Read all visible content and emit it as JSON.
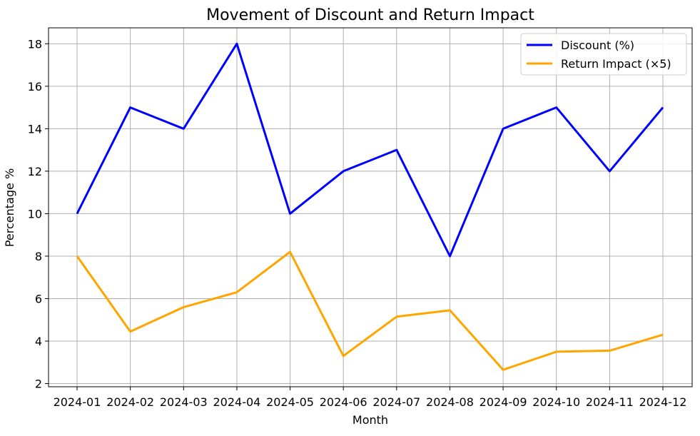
{
  "chart_data": {
    "type": "line",
    "title": "Movement of Discount and Return Impact",
    "xlabel": "Month",
    "ylabel": "Percentage %",
    "categories": [
      "2024-01",
      "2024-02",
      "2024-03",
      "2024-04",
      "2024-05",
      "2024-06",
      "2024-07",
      "2024-08",
      "2024-09",
      "2024-10",
      "2024-11",
      "2024-12"
    ],
    "ylim": [
      1.85,
      18.75
    ],
    "yticks": [
      2,
      4,
      6,
      8,
      10,
      12,
      14,
      16,
      18
    ],
    "grid": true,
    "legend_position": "top-right",
    "series": [
      {
        "name": "Discount (%)",
        "color": "#0000ff",
        "values": [
          10,
          15,
          14,
          18,
          10,
          12,
          13,
          8,
          14,
          15,
          12,
          15
        ]
      },
      {
        "name": "Return Impact (×5)",
        "color": "#ffa500",
        "values": [
          8.0,
          4.45,
          5.6,
          6.3,
          8.2,
          3.3,
          5.15,
          5.45,
          2.65,
          3.5,
          3.55,
          4.3
        ]
      }
    ]
  }
}
